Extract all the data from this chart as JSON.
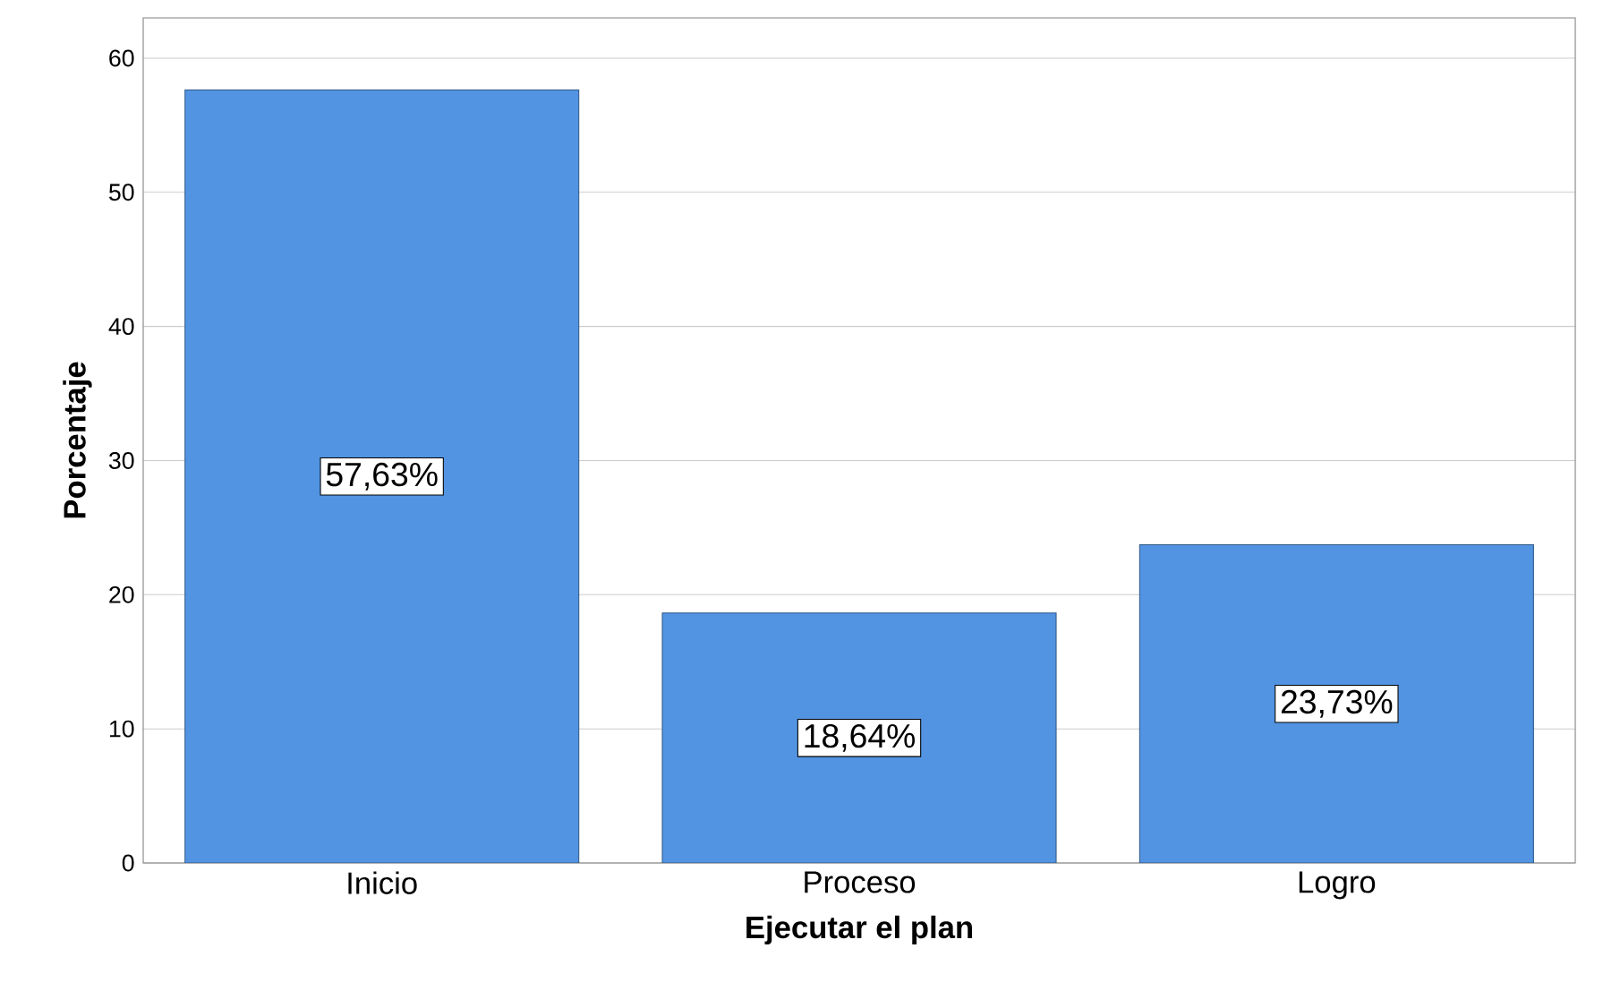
{
  "chart_data": {
    "type": "bar",
    "xlabel": "Ejecutar el plan",
    "ylabel": "Porcentaje",
    "categories": [
      "Inicio",
      "Proceso",
      "Logro"
    ],
    "values": [
      57.63,
      18.64,
      23.73
    ],
    "value_labels": [
      "57,63%",
      "18,64%",
      "23,73%"
    ],
    "color": "#5294e2",
    "ylim": [
      0,
      63
    ],
    "yticks": [
      0,
      10,
      20,
      30,
      40,
      50,
      60
    ],
    "grid": "y"
  }
}
